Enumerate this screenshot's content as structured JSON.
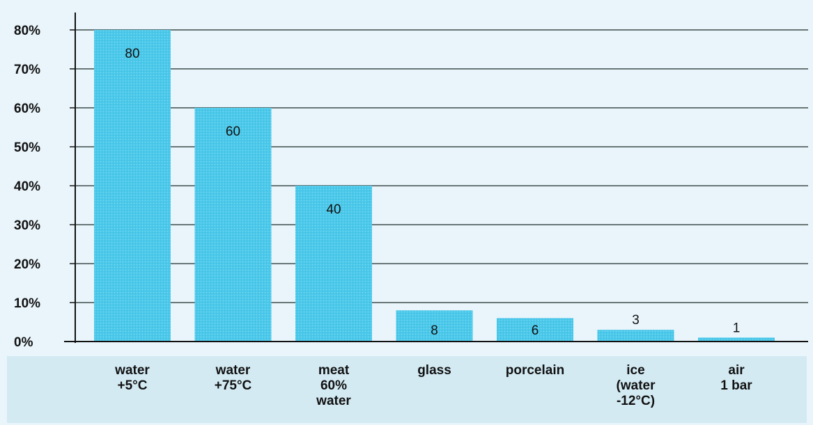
{
  "chart_data": {
    "type": "bar",
    "categories": [
      [
        "water",
        "+5°C"
      ],
      [
        "water",
        "+75°C"
      ],
      [
        "meat",
        "60%",
        "water"
      ],
      [
        "glass"
      ],
      [
        "porcelain"
      ],
      [
        "ice",
        "(water",
        "-12°C)"
      ],
      [
        "air",
        "1 bar"
      ]
    ],
    "values": [
      80,
      60,
      40,
      8,
      6,
      3,
      1
    ],
    "data_labels": [
      "80",
      "60",
      "40",
      "8",
      "6",
      "3",
      "1"
    ],
    "yticks": [
      "0%",
      "10%",
      "20%",
      "30%",
      "40%",
      "50%",
      "60%",
      "70%",
      "80%"
    ],
    "ylim": [
      0,
      80
    ],
    "grid": true,
    "colors": {
      "bar": "#4cc9ea",
      "background": "#e9f5fb",
      "label_band": "#d3eaf3",
      "grid": "#1c2a26"
    }
  }
}
